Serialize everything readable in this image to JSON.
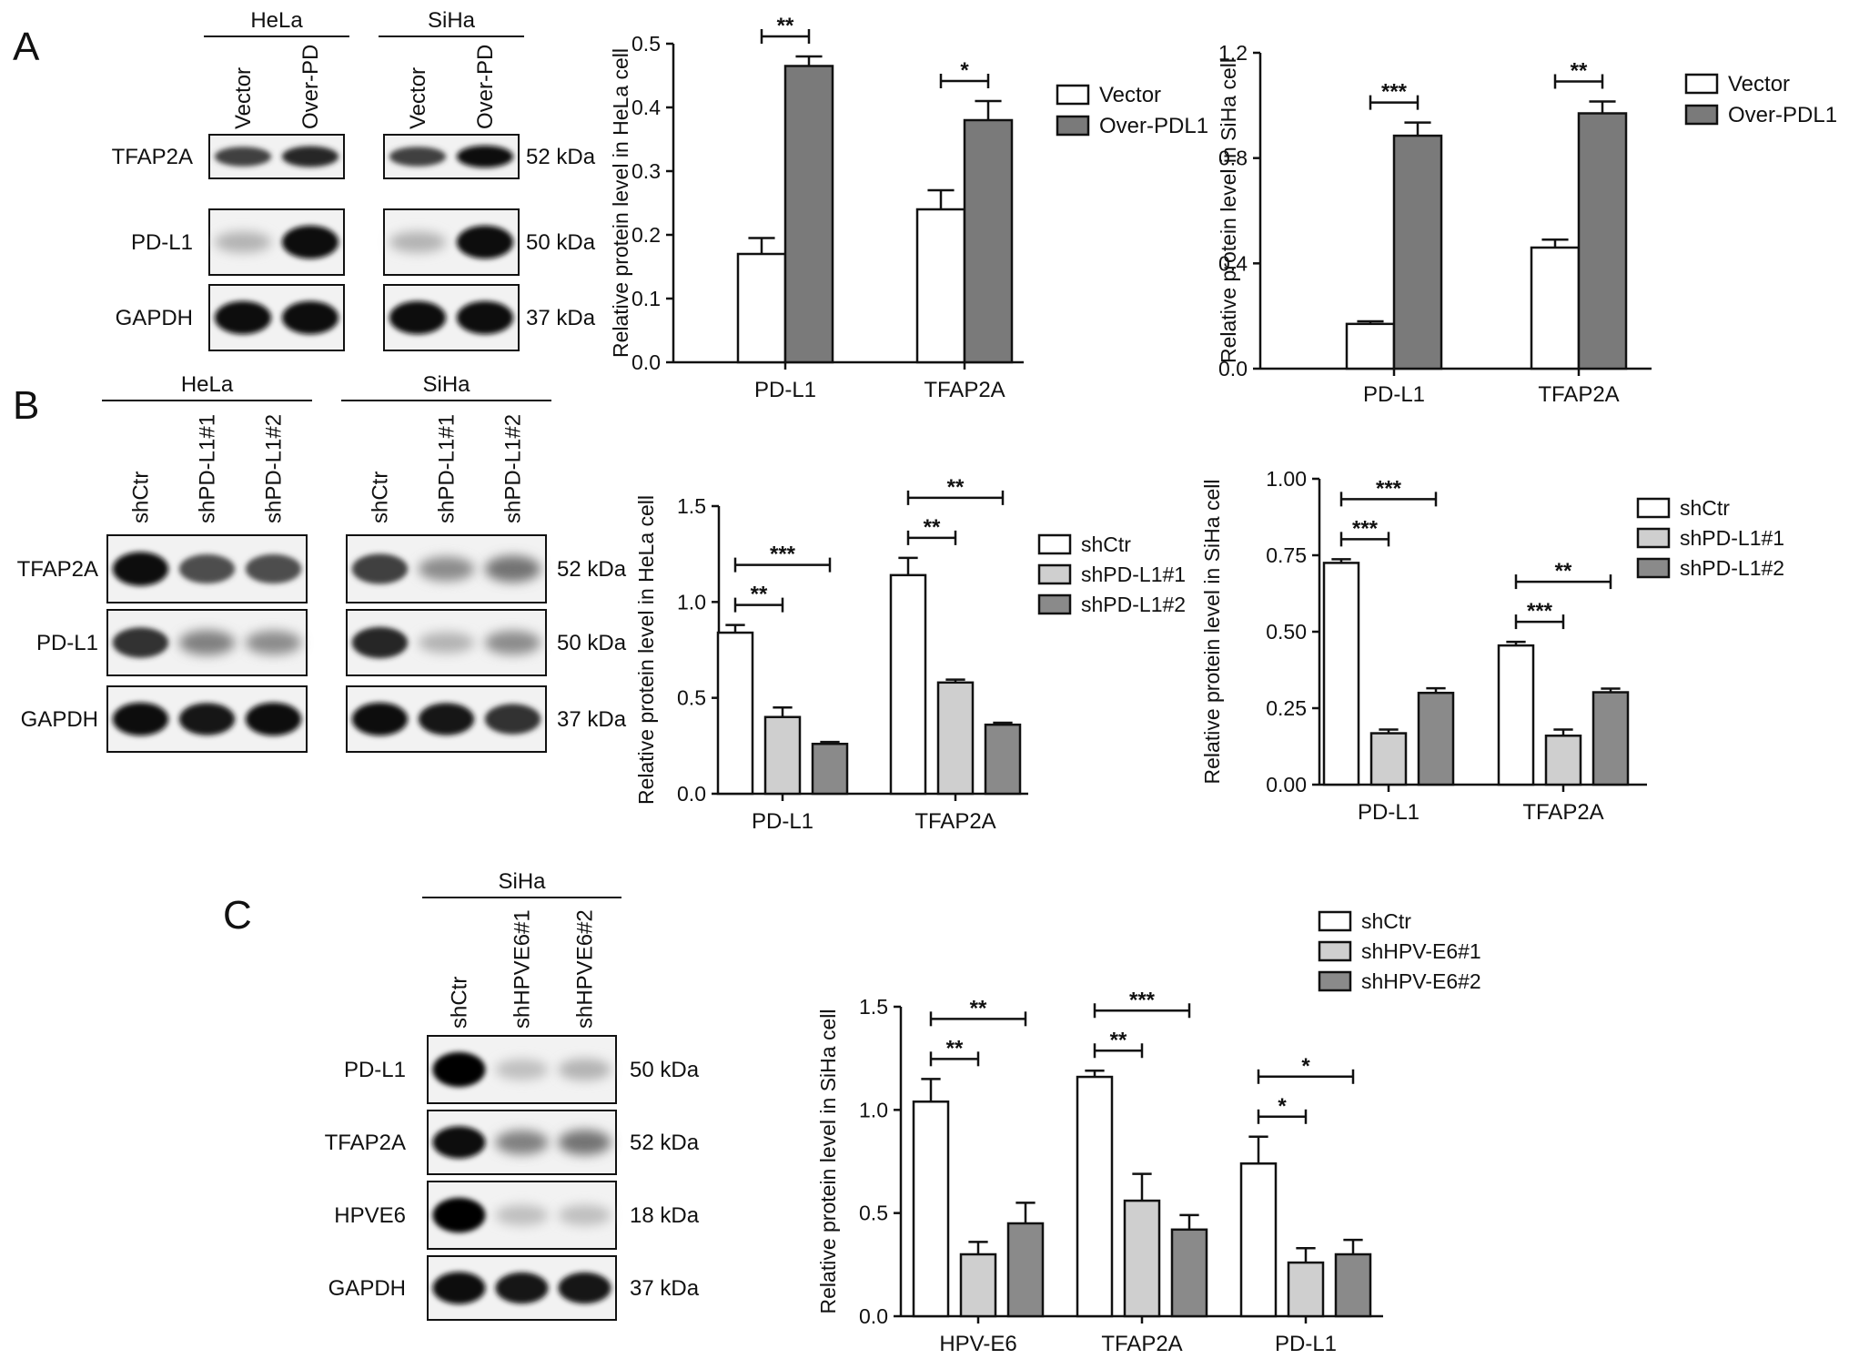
{
  "panels": {
    "A": {
      "letter": "A",
      "blot": {
        "groups": [
          {
            "label": "HeLa",
            "lanes": [
              "Vector",
              "Over-PD"
            ]
          },
          {
            "label": "SiHa",
            "lanes": [
              "Vector",
              "Over-PD"
            ]
          }
        ],
        "rows": [
          "TFAP2A",
          "PD-L1",
          "GAPDH"
        ],
        "sizes": [
          "52 kDa",
          "50 kDa",
          "37 kDa"
        ]
      }
    },
    "B": {
      "letter": "B",
      "blot": {
        "groups": [
          {
            "label": "HeLa",
            "lanes": [
              "shCtr",
              "shPD-L1#1",
              "shPD-L1#2"
            ]
          },
          {
            "label": "SiHa",
            "lanes": [
              "shCtr",
              "shPD-L1#1",
              "shPD-L1#2"
            ]
          }
        ],
        "rows": [
          "TFAP2A",
          "PD-L1",
          "GAPDH"
        ],
        "sizes": [
          "52 kDa",
          "50 kDa",
          "37 kDa"
        ]
      }
    },
    "C": {
      "letter": "C",
      "blot": {
        "groups": [
          {
            "label": "SiHa",
            "lanes": [
              "shCtr",
              "shHPVE6#1",
              "shHPVE6#2"
            ]
          }
        ],
        "rows": [
          "PD-L1",
          "TFAP2A",
          "HPVE6",
          "GAPDH"
        ],
        "sizes": [
          "50 kDa",
          "52 kDa",
          "18 kDa",
          "37 kDa"
        ]
      }
    }
  },
  "chart_data": [
    {
      "id": "A1",
      "type": "bar",
      "ylabel": "Relative protein level in HeLa cell",
      "ylim": [
        0,
        0.5
      ],
      "yticks": [
        "0.0",
        "0.1",
        "0.2",
        "0.3",
        "0.4",
        "0.5"
      ],
      "categories": [
        "PD-L1",
        "TFAP2A"
      ],
      "series": [
        {
          "name": "Vector",
          "color": "#ffffff",
          "values": [
            0.17,
            0.24
          ],
          "errors": [
            0.025,
            0.03
          ]
        },
        {
          "name": "Over-PDL1",
          "color": "#7a7a7a",
          "values": [
            0.465,
            0.38
          ],
          "errors": [
            0.015,
            0.03
          ]
        }
      ],
      "significance": [
        {
          "category": 0,
          "from": 0,
          "to": 1,
          "label": "**"
        },
        {
          "category": 1,
          "from": 0,
          "to": 1,
          "label": "*"
        }
      ],
      "legend": "right"
    },
    {
      "id": "A2",
      "type": "bar",
      "ylabel": "Relative protein level in SiHa cell",
      "ylim": [
        0,
        1.2
      ],
      "yticks": [
        "0.0",
        "0.4",
        "0.8",
        "1.2"
      ],
      "categories": [
        "PD-L1",
        "TFAP2A"
      ],
      "series": [
        {
          "name": "Vector",
          "color": "#ffffff",
          "values": [
            0.17,
            0.46
          ],
          "errors": [
            0.01,
            0.03
          ]
        },
        {
          "name": "Over-PDL1",
          "color": "#7a7a7a",
          "values": [
            0.885,
            0.97
          ],
          "errors": [
            0.05,
            0.045
          ]
        }
      ],
      "significance": [
        {
          "category": 0,
          "from": 0,
          "to": 1,
          "label": "***"
        },
        {
          "category": 1,
          "from": 0,
          "to": 1,
          "label": "**"
        }
      ],
      "legend": "right"
    },
    {
      "id": "B1",
      "type": "bar",
      "ylabel": "Relative protein level in HeLa cell",
      "ylim": [
        0,
        1.5
      ],
      "yticks": [
        "0.0",
        "0.5",
        "1.0",
        "1.5"
      ],
      "categories": [
        "PD-L1",
        "TFAP2A"
      ],
      "series": [
        {
          "name": "shCtr",
          "color": "#ffffff",
          "values": [
            0.84,
            1.14
          ],
          "errors": [
            0.04,
            0.09
          ]
        },
        {
          "name": "shPD-L1#1",
          "color": "#cfcfcf",
          "values": [
            0.4,
            0.58
          ],
          "errors": [
            0.05,
            0.015
          ]
        },
        {
          "name": "shPD-L1#2",
          "color": "#8a8a8a",
          "values": [
            0.26,
            0.36
          ],
          "errors": [
            0.01,
            0.01
          ]
        }
      ],
      "significance": [
        {
          "category": 0,
          "from": 0,
          "to": 1,
          "label": "**"
        },
        {
          "category": 0,
          "from": 0,
          "to": 2,
          "label": "***"
        },
        {
          "category": 1,
          "from": 0,
          "to": 1,
          "label": "**"
        },
        {
          "category": 1,
          "from": 0,
          "to": 2,
          "label": "**"
        }
      ],
      "legend": "right"
    },
    {
      "id": "B2",
      "type": "bar",
      "ylabel": "Relative protein level in SiHa cell",
      "ylim": [
        0,
        1.0
      ],
      "yticks": [
        "0.00",
        "0.25",
        "0.50",
        "0.75",
        "1.00"
      ],
      "categories": [
        "PD-L1",
        "TFAP2A"
      ],
      "series": [
        {
          "name": "shCtr",
          "color": "#ffffff",
          "values": [
            0.725,
            0.455
          ],
          "errors": [
            0.012,
            0.012
          ]
        },
        {
          "name": "shPD-L1#1",
          "color": "#cfcfcf",
          "values": [
            0.168,
            0.16
          ],
          "errors": [
            0.012,
            0.02
          ]
        },
        {
          "name": "shPD-L1#2",
          "color": "#8a8a8a",
          "values": [
            0.3,
            0.302
          ],
          "errors": [
            0.015,
            0.012
          ]
        }
      ],
      "significance": [
        {
          "category": 0,
          "from": 0,
          "to": 1,
          "label": "***"
        },
        {
          "category": 0,
          "from": 0,
          "to": 2,
          "label": "***"
        },
        {
          "category": 1,
          "from": 0,
          "to": 1,
          "label": "***"
        },
        {
          "category": 1,
          "from": 0,
          "to": 2,
          "label": "**"
        }
      ],
      "legend": "right"
    },
    {
      "id": "C1",
      "type": "bar",
      "ylabel": "Relative protein level in SiHa cell",
      "ylim": [
        0,
        1.5
      ],
      "yticks": [
        "0.0",
        "0.5",
        "1.0",
        "1.5"
      ],
      "categories": [
        "HPV-E6",
        "TFAP2A",
        "PD-L1"
      ],
      "series": [
        {
          "name": "shCtr",
          "color": "#ffffff",
          "values": [
            1.04,
            1.16,
            0.74
          ],
          "errors": [
            0.11,
            0.03,
            0.13
          ]
        },
        {
          "name": "shHPV-E6#1",
          "color": "#cfcfcf",
          "values": [
            0.3,
            0.56,
            0.26
          ],
          "errors": [
            0.06,
            0.13,
            0.07
          ]
        },
        {
          "name": "shHPV-E6#2",
          "color": "#8a8a8a",
          "values": [
            0.45,
            0.42,
            0.3
          ],
          "errors": [
            0.1,
            0.07,
            0.07
          ]
        }
      ],
      "significance": [
        {
          "category": 0,
          "from": 0,
          "to": 1,
          "label": "**"
        },
        {
          "category": 0,
          "from": 0,
          "to": 2,
          "label": "**"
        },
        {
          "category": 1,
          "from": 0,
          "to": 1,
          "label": "**"
        },
        {
          "category": 1,
          "from": 0,
          "to": 2,
          "label": "***"
        },
        {
          "category": 2,
          "from": 0,
          "to": 1,
          "label": "*"
        },
        {
          "category": 2,
          "from": 0,
          "to": 2,
          "label": "*"
        }
      ],
      "legend": "top-right"
    }
  ]
}
